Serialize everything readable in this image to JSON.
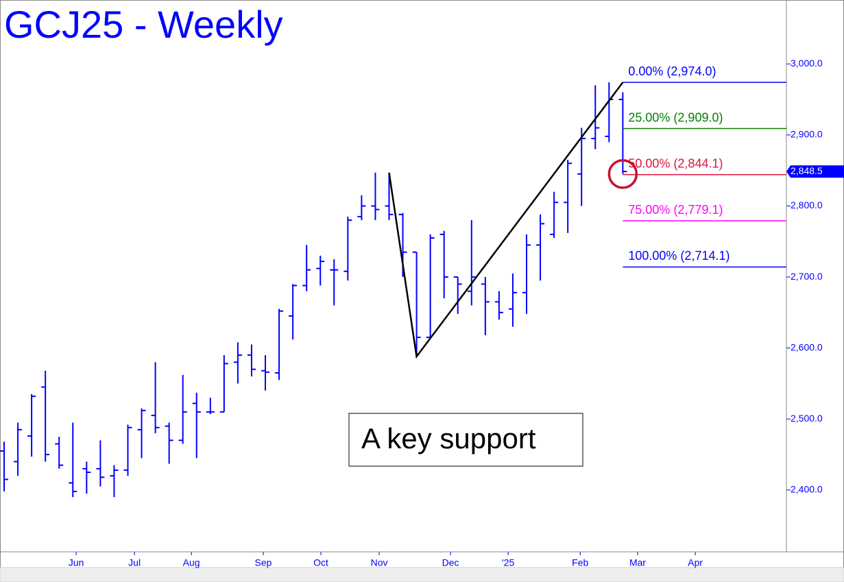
{
  "chart_data": {
    "type": "ohlc",
    "title": "GCJ25 - Weekly",
    "color": "#0000ff",
    "open": [
      2455,
      2440,
      2476,
      2545,
      2465,
      2410,
      2430,
      2430,
      2420,
      2428,
      2485,
      2505,
      2490,
      2470,
      2522,
      2510,
      2510,
      2580,
      2590,
      2568,
      2565,
      2645,
      2688,
      2712,
      2710,
      2708,
      2785,
      2800,
      2800,
      2788,
      2735,
      2615,
      2760,
      2700,
      2680,
      2690,
      2665,
      2655,
      2678,
      2745,
      2760,
      2805,
      2845,
      2895,
      2898,
      2950
    ],
    "high": [
      2468,
      2495,
      2535,
      2568,
      2475,
      2495,
      2440,
      2470,
      2435,
      2492,
      2515,
      2580,
      2495,
      2562,
      2537,
      2530,
      2590,
      2608,
      2605,
      2590,
      2655,
      2690,
      2745,
      2730,
      2725,
      2785,
      2815,
      2847,
      2847,
      2790,
      2735,
      2760,
      2765,
      2700,
      2780,
      2700,
      2680,
      2705,
      2760,
      2788,
      2820,
      2865,
      2910,
      2970,
      2974,
      2960
    ],
    "low": [
      2398,
      2420,
      2447,
      2440,
      2430,
      2390,
      2395,
      2405,
      2390,
      2420,
      2445,
      2480,
      2437,
      2465,
      2445,
      2507,
      2510,
      2550,
      2560,
      2540,
      2555,
      2612,
      2680,
      2688,
      2660,
      2695,
      2780,
      2780,
      2780,
      2700,
      2588,
      2615,
      2670,
      2648,
      2660,
      2618,
      2640,
      2630,
      2648,
      2695,
      2755,
      2762,
      2800,
      2880,
      2890,
      2845
    ],
    "close": [
      2415,
      2485,
      2532,
      2450,
      2435,
      2398,
      2425,
      2418,
      2428,
      2488,
      2512,
      2488,
      2470,
      2510,
      2510,
      2510,
      2578,
      2590,
      2570,
      2566,
      2652,
      2688,
      2710,
      2722,
      2710,
      2780,
      2800,
      2795,
      2788,
      2735,
      2615,
      2755,
      2700,
      2690,
      2700,
      2665,
      2650,
      2678,
      2745,
      2775,
      2805,
      2860,
      2895,
      2910,
      2950,
      2848.5
    ],
    "xlim": [
      -0.3,
      56.9
    ],
    "xticks": [
      {
        "value": 5.24,
        "label": "Jun"
      },
      {
        "value": 9.48,
        "label": "Jul"
      },
      {
        "value": 13.62,
        "label": "Aug"
      },
      {
        "value": 18.85,
        "label": "Sep"
      },
      {
        "value": 23.04,
        "label": "Oct"
      },
      {
        "value": 27.28,
        "label": "Nov"
      },
      {
        "value": 32.47,
        "label": "Dec"
      },
      {
        "value": 36.66,
        "label": "'25"
      },
      {
        "value": 41.9,
        "label": "Feb"
      },
      {
        "value": 46.08,
        "label": "Mar"
      },
      {
        "value": 50.27,
        "label": "Apr"
      }
    ],
    "ylim": [
      2313,
      3090
    ],
    "yticks": [
      {
        "value": 2400,
        "label": "2,400.0"
      },
      {
        "value": 2500,
        "label": "2,500.0"
      },
      {
        "value": 2600,
        "label": "2,600.0"
      },
      {
        "value": 2700,
        "label": "2,700.0"
      },
      {
        "value": 2800,
        "label": "2,800.0"
      },
      {
        "value": 2900,
        "label": "2,900.0"
      },
      {
        "value": 3000,
        "label": "3,000.0"
      }
    ],
    "levels": [
      {
        "label": "0.00% (2,974.0)",
        "value": 2974.0,
        "color": "#0000ff"
      },
      {
        "label": "25.00% (2,909.0)",
        "value": 2909.0,
        "color": "#008000"
      },
      {
        "label": "50.00% (2,844.1)",
        "value": 2844.1,
        "color": "#dc143c"
      },
      {
        "label": "75.00% (2,779.1)",
        "value": 2779.1,
        "color": "#ff00ff"
      },
      {
        "label": "100.00% (2,714.1)",
        "value": 2714.1,
        "color": "#0000ff"
      }
    ],
    "levels_start": 45,
    "last": {
      "value": 2848.5,
      "label": "2,848.5"
    },
    "swing": {
      "x": [
        28,
        30,
        45
      ],
      "y": [
        2847,
        2588,
        2974
      ]
    },
    "highlight": {
      "x": 45,
      "y": 2845
    },
    "annotation": "A key support"
  }
}
